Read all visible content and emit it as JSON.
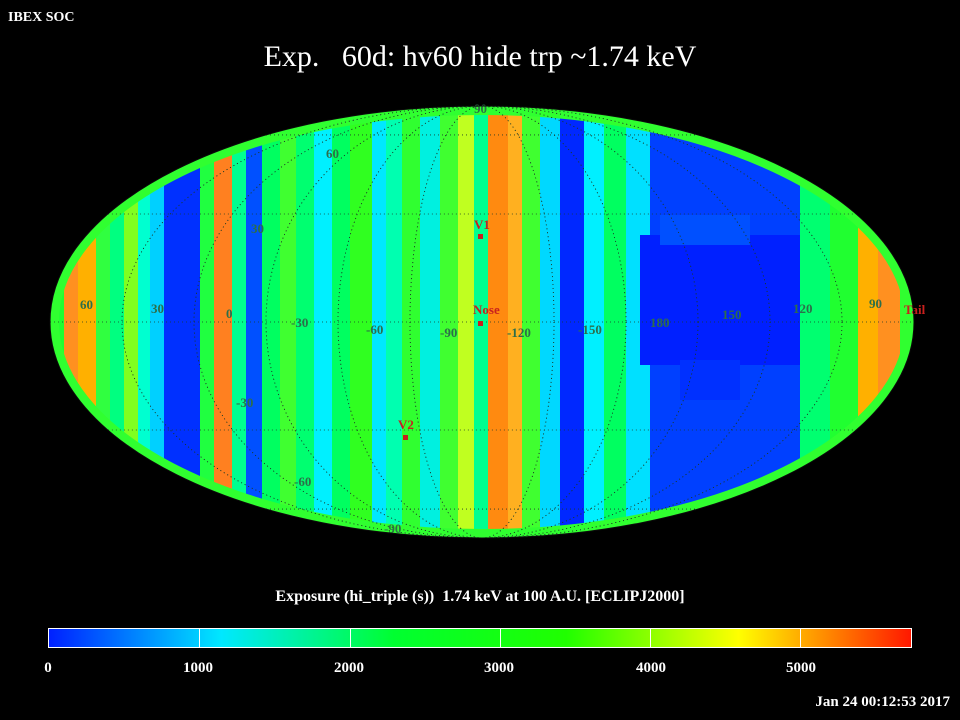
{
  "header": {
    "corner_label": "IBEX SOC",
    "title": "Exp.   60d: hv60 hide trp ~1.74 keV"
  },
  "map": {
    "projection": "Mollweide (equal-area all-sky)",
    "frame": "ECLIPJ2000",
    "latitude_labels": [
      "90",
      "60",
      "30",
      "-30",
      "-60",
      "-90"
    ],
    "longitude_labels": [
      "60",
      "30",
      "0",
      "-30",
      "-60",
      "-90",
      "-120",
      "-150",
      "180",
      "150",
      "120",
      "90"
    ],
    "markers": [
      {
        "label": "V1"
      },
      {
        "label": "Nose"
      },
      {
        "label": "V2"
      },
      {
        "label": "Tail"
      }
    ],
    "marker_color": "#c8201e",
    "grid_label_color": "#2d6e4a"
  },
  "colorbar": {
    "caption": "Exposure (hi_triple (s))  1.74 keV at 100 A.U. [ECLIPJ2000]",
    "min": 0,
    "max": 5750,
    "ticks": [
      "0",
      "1000",
      "2000",
      "3000",
      "4000",
      "5000"
    ],
    "stops": [
      "#0020ff",
      "#00e8ff",
      "#00ff30",
      "#20ff00",
      "#ffff00",
      "#ff1800"
    ]
  },
  "footer": {
    "timestamp": "Jan 24 00:12:53 2017"
  }
}
